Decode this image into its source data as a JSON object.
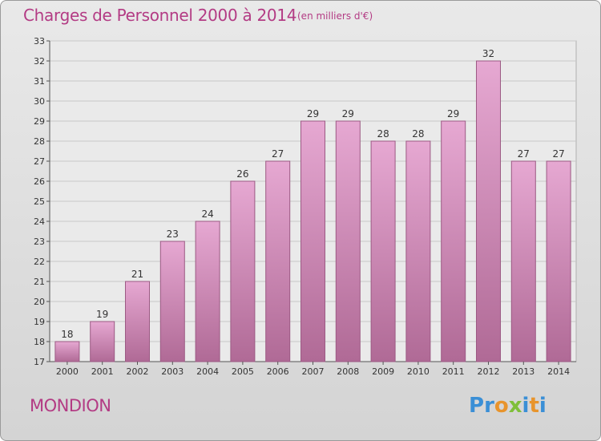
{
  "title": "Charges de Personnel 2000 à 2014",
  "subtitle": "(en milliers d'€)",
  "commune": "MONDION",
  "logo": {
    "letters": [
      {
        "char": "P",
        "color": "#3a8fd6"
      },
      {
        "char": "r",
        "color": "#3a8fd6"
      },
      {
        "char": "o",
        "color": "#e8942c"
      },
      {
        "char": "x",
        "color": "#7fbf3a"
      },
      {
        "char": "i",
        "color": "#3a8fd6"
      },
      {
        "char": "t",
        "color": "#e8942c"
      },
      {
        "char": "i",
        "color": "#3a8fd6"
      }
    ]
  },
  "colors": {
    "bar_top": "#e6a8d2",
    "bar_bottom": "#b06a96",
    "bar_stroke": "#9c5a84",
    "title": "#b33b84",
    "grid": "#c8c8c8",
    "plot_bg": "#eaeaea"
  },
  "chart_data": {
    "type": "bar",
    "title": "Charges de Personnel 2000 à 2014",
    "subtitle": "(en milliers d'€)",
    "xlabel": "",
    "ylabel": "",
    "categories": [
      "2000",
      "2001",
      "2002",
      "2003",
      "2004",
      "2005",
      "2006",
      "2007",
      "2008",
      "2009",
      "2010",
      "2011",
      "2012",
      "2013",
      "2014"
    ],
    "values": [
      18,
      19,
      21,
      23,
      24,
      26,
      27,
      29,
      29,
      28,
      28,
      29,
      32,
      27,
      27
    ],
    "ylim": [
      17,
      33
    ],
    "yticks": [
      17,
      18,
      19,
      20,
      21,
      22,
      23,
      24,
      25,
      26,
      27,
      28,
      29,
      30,
      31,
      32,
      33
    ],
    "grid": true,
    "legend": "none"
  }
}
